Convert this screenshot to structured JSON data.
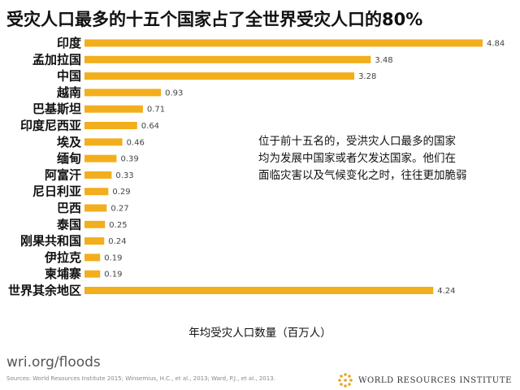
{
  "title": "受灾人口最多的十五个国家占了全世界受灾人口的80%",
  "annotation": [
    "位于前十五名的，受洪灾人口最多的国家",
    "均为发展中国家或者欠发达国家。他们在",
    "面临灾害以及气候变化之时，往往更加脆弱"
  ],
  "footer": {
    "url": "wri.org/floods",
    "sources": "Sources: World Resources Institute 2015; Winsemius, H.C., et al., 2013; Ward, P.J., et al., 2013.",
    "brand": "WORLD RESOURCES INSTITUTE"
  },
  "colors": {
    "bar": "#f2ae1c",
    "brand": "#e6a52a"
  },
  "chart_data": {
    "type": "bar",
    "orientation": "horizontal",
    "title": "受灾人口最多的十五个国家占了全世界受灾人口的80%",
    "xlabel": "年均受灾人口数量（百万人）",
    "ylabel": "",
    "xlim": [
      0,
      4.84
    ],
    "grid": false,
    "categories": [
      "印度",
      "孟加拉国",
      "中国",
      "越南",
      "巴基斯坦",
      "印度尼西亚",
      "埃及",
      "缅甸",
      "阿富汗",
      "尼日利亚",
      "巴西",
      "泰国",
      "刚果共和国",
      "伊拉克",
      "柬埔寨",
      "世界其余地区"
    ],
    "values": [
      4.84,
      3.48,
      3.28,
      0.93,
      0.71,
      0.64,
      0.46,
      0.39,
      0.33,
      0.29,
      0.27,
      0.25,
      0.24,
      0.19,
      0.19,
      4.24
    ],
    "labels": [
      "4.84",
      "3.48",
      "3.28",
      "0.93",
      "0.71",
      "0.64",
      "0.46",
      "0.39",
      "0.33",
      "0.29",
      "0.27",
      "0.25",
      "0.24",
      "0.19",
      "0.19",
      "4.24"
    ]
  }
}
